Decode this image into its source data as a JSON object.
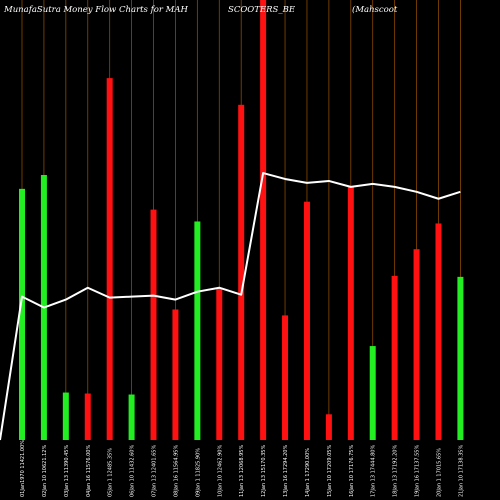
{
  "header": {
    "title_left": "MunafaSutra  Money Flow  Charts for MAH",
    "title_mid": "SCOOTERS_BE",
    "title_right": "(Mahscoot"
  },
  "colors": {
    "background": "#000000",
    "up_bar": "#22ee22",
    "down_bar": "#ff1111",
    "gridline": "#8a4a00",
    "flow_line": "#ffffff"
  },
  "chart_data": {
    "type": "bar",
    "title": "MunafaSutra  Money Flow  Charts for MAH SCOOTERS_BE (Mahscoot",
    "xlabel": "",
    "ylabel": "",
    "grid": true,
    "categories": [
      "01Jan1970 11421.00%",
      "02Jan 10 10621.12%",
      "03Jan 13 11390.45%",
      "04Jan 16 11576.00%",
      "05Jan 1 12485.35%",
      "06Jan 10 11432.60%",
      "07Jan 13 12401.65%",
      "08Jan 16 11564.95%",
      "09Jan 1 11825.90%",
      "10Jan 10 12462.90%",
      "11Jan 13 12068.95%",
      "12Jan 13 15170.35%",
      "13Jan 16 17294.20%",
      "14Jan 1 17290.00%",
      "15Jan 10 17209.05%",
      "16Jan 10 17176.75%",
      "17Jan 13 17444.80%",
      "18Jan 13 17192.20%",
      "19Jan 16 17137.55%",
      "20Jan 1 17015.65%",
      "21Jan 10 17138.35%"
    ],
    "bar_heights": [
      254,
      268,
      48,
      47,
      366,
      46,
      233,
      132,
      221,
      153,
      339,
      445,
      126,
      241,
      26,
      256,
      95,
      166,
      193,
      219,
      165
    ],
    "bar_colors": [
      "green",
      "green",
      "green",
      "red",
      "red",
      "green",
      "red",
      "red",
      "green",
      "red",
      "red",
      "red",
      "red",
      "red",
      "red",
      "red",
      "green",
      "red",
      "red",
      "red",
      "green"
    ],
    "bar_ylim": [
      0,
      445
    ],
    "line_values": [
      145,
      134,
      142,
      154,
      144,
      145,
      146,
      142,
      150,
      154,
      147,
      270,
      264,
      260,
      262,
      256,
      259,
      256,
      251,
      244,
      251
    ],
    "line_ylim": [
      0,
      445
    ]
  }
}
